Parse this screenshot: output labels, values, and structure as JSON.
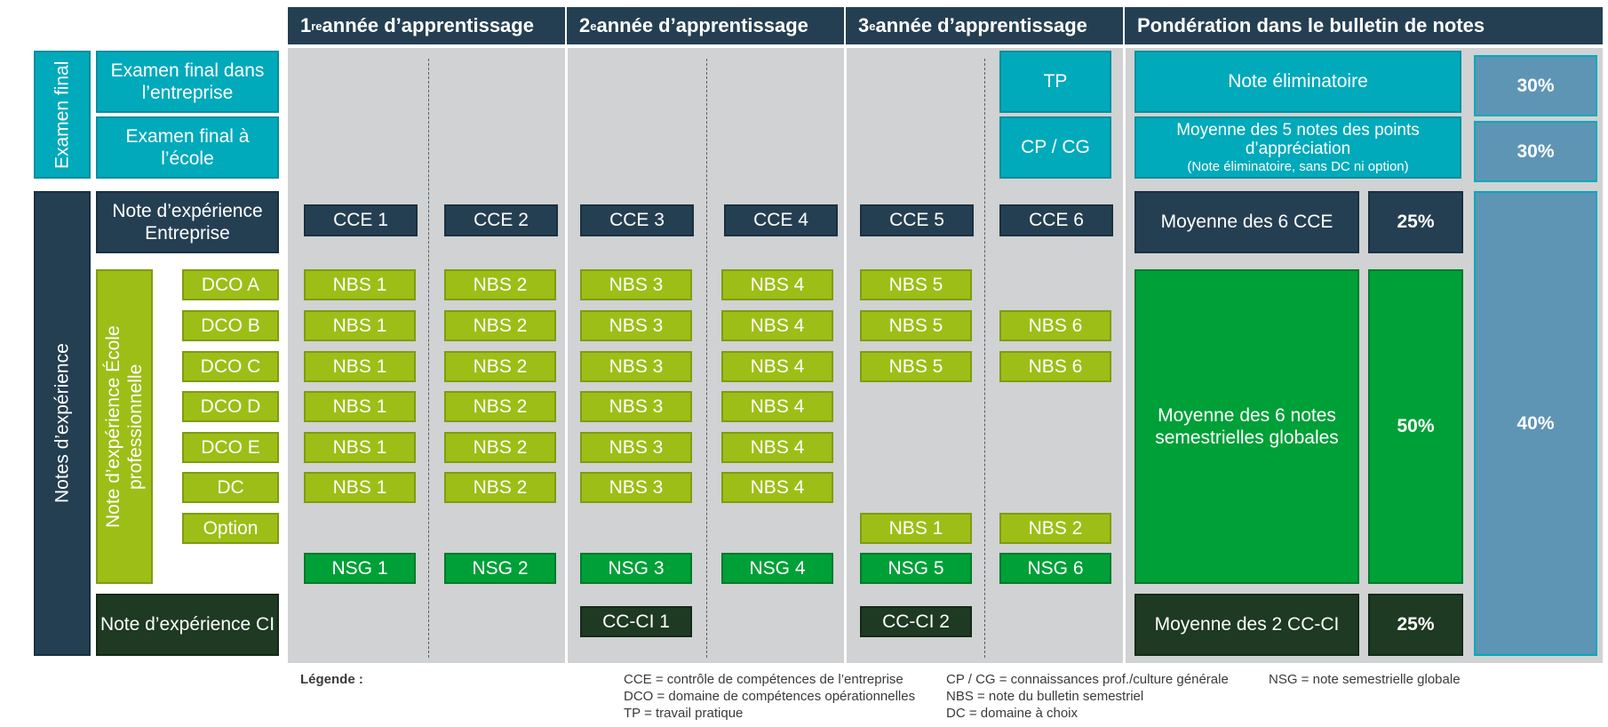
{
  "headers": {
    "year1": {
      "num": "1",
      "sup": "re",
      "text": " année d’apprentissage"
    },
    "year2": {
      "num": "2",
      "sup": "e",
      "text": " année d’apprentissage"
    },
    "year3": {
      "num": "3",
      "sup": "e",
      "text": " année d’apprentissage"
    },
    "weighting": "Pondération dans le bulletin de notes"
  },
  "left": {
    "final_exam_group": "Examen final",
    "experience_group": "Notes d’expérience",
    "school_group": "Note d’expérience École professionnelle",
    "exam_company": "Examen final dans l’entreprise",
    "exam_school": "Examen final à l’école",
    "company_note": "Note d’expérience Entreprise",
    "ci_note": "Note d’expérience CI",
    "rows": [
      "DCO A",
      "DCO B",
      "DCO C",
      "DCO D",
      "DCO E",
      "DC",
      "Option"
    ]
  },
  "grid": {
    "tp": "TP",
    "cpcg": "CP / CG",
    "cce": [
      "CCE 1",
      "CCE 2",
      "CCE 3",
      "CCE 4",
      "CCE 5",
      "CCE 6"
    ],
    "nbs": {
      "col1": "NBS 1",
      "col2": "NBS 2",
      "col3": "NBS 3",
      "col4": "NBS 4",
      "col5": "NBS 5",
      "col6": "NBS 6"
    },
    "option": [
      "NBS 1",
      "NBS 2"
    ],
    "nsg": [
      "NSG 1",
      "NSG 2",
      "NSG 3",
      "NSG 4",
      "NSG 5",
      "NSG 6"
    ],
    "ccci": [
      "CC-CI 1",
      "CC-CI 2"
    ]
  },
  "weighting": {
    "eliminatory": "Note éliminatoire",
    "avg_points": "Moyenne des 5 notes des points d’appréciation",
    "avg_points_note": "(Note éliminatoire, sans DC ni option)",
    "avg_cce": "Moyenne des 6 CCE",
    "avg_nsg": "Moyenne des 6 notes semestrielles globales",
    "avg_ccci": "Moyenne des 2 CC-CI",
    "pct_exam_company": "30%",
    "pct_exam_school": "30%",
    "pct_cce": "25%",
    "pct_nsg": "50%",
    "pct_ccci": "25%",
    "pct_experience": "40%"
  },
  "legend": {
    "title": "Légende :",
    "col1": [
      "CCE = contrôle de compétences de l’entreprise",
      "DCO = domaine de compétences opérationnelles",
      "TP = travail pratique"
    ],
    "col2": [
      "CP / CG = connaissances prof./culture générale",
      "NBS = note du bulletin semestriel",
      "DC = domaine à choix"
    ],
    "col3": [
      "NSG = note semestrielle globale"
    ]
  },
  "colors": {
    "navy": "#253f52",
    "teal": "#00aabb",
    "lime": "#9dbe17",
    "green": "#00a038",
    "dark_green": "#1e3a22",
    "steel": "#5e95b5",
    "grey": "#d0d2d3"
  }
}
